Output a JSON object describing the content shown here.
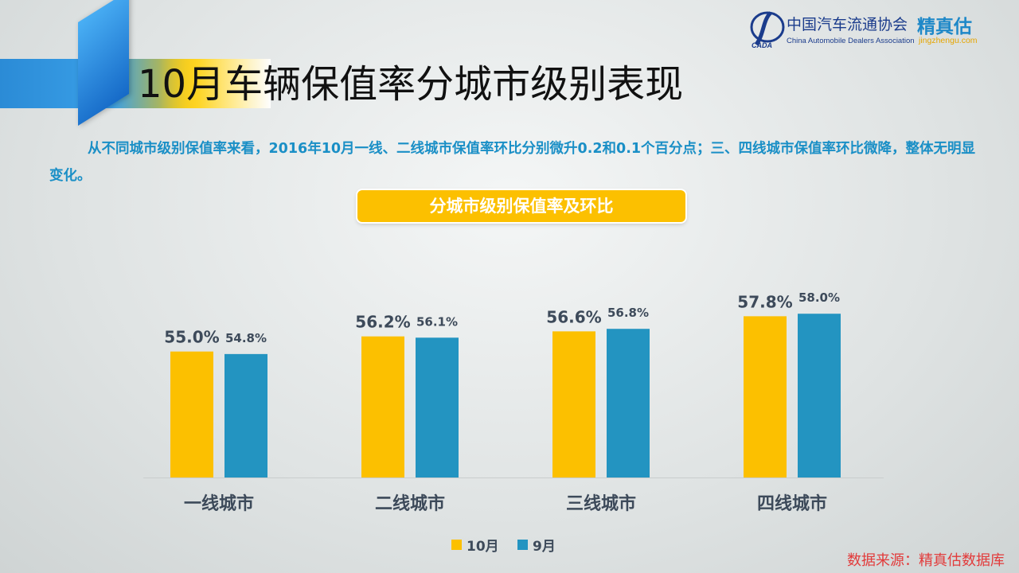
{
  "header": {
    "title": "10月车辆保值率分城市级别表现"
  },
  "logo": {
    "org_cn": "中国汽车流通协会",
    "org_en": "China Automobile Dealers Association",
    "mark_text": "CADA",
    "brand": "精真估",
    "brand_url": "jingzhengu.com"
  },
  "summary": {
    "text": "从不同城市级别保值率来看，2016年10月一线、二线城市保值率环比分别微升0.2和0.1个百分点；三、四线城市保值率环比微降，整体无明显变化。"
  },
  "chart_banner": {
    "label": "分城市级别保值率及环比"
  },
  "footer": {
    "source": "数据来源：精真估数据库"
  },
  "colors": {
    "october": "#fcc000",
    "september": "#2394c1",
    "value_label": "#3d4a5a"
  },
  "chart_data": {
    "type": "bar",
    "categories": [
      "一线城市",
      "二线城市",
      "三线城市",
      "四线城市"
    ],
    "series": [
      {
        "name": "10月",
        "values": [
          55.0,
          56.2,
          56.6,
          57.8
        ],
        "labels": [
          "55.0%",
          "56.2%",
          "56.6%",
          "57.8%"
        ]
      },
      {
        "name": "9月",
        "values": [
          54.8,
          56.1,
          56.8,
          58.0
        ],
        "labels": [
          "54.8%",
          "56.1%",
          "56.8%",
          "58.0%"
        ]
      }
    ],
    "unit": "%",
    "legend_position": "bottom",
    "grid": false
  }
}
